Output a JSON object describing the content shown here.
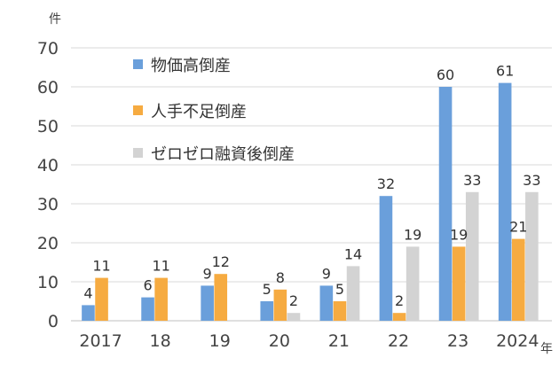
{
  "chart_data": {
    "type": "bar",
    "y_unit": "件",
    "x_unit": "年",
    "categories": [
      "2017",
      "18",
      "19",
      "20",
      "21",
      "22",
      "23",
      "2024"
    ],
    "ylim": [
      0,
      70
    ],
    "yticks": [
      0,
      10,
      20,
      30,
      40,
      50,
      60,
      70
    ],
    "grid": true,
    "legend_position": "top-left",
    "series": [
      {
        "name": "物価高倒産",
        "color": "#6a9fdb",
        "values": [
          4,
          6,
          9,
          5,
          9,
          32,
          60,
          61
        ]
      },
      {
        "name": "人手不足倒産",
        "color": "#f6ab41",
        "values": [
          11,
          11,
          12,
          8,
          5,
          2,
          19,
          21
        ]
      },
      {
        "name": "ゼロゼロ融資後倒産",
        "color": "#d3d3d3",
        "values": [
          null,
          null,
          null,
          2,
          14,
          19,
          33,
          33
        ]
      }
    ]
  }
}
